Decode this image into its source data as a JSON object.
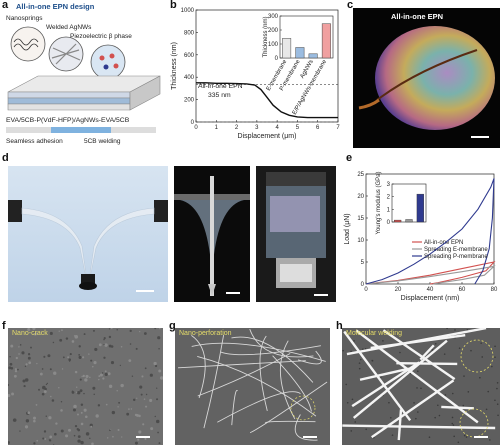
{
  "panels": {
    "a": {
      "label": "a",
      "title": "All-in-one EPN design",
      "callouts": [
        "Nanosprings",
        "Welded AgNWs",
        "Piezoelectric β phase"
      ],
      "layers_text": "EVA/5CB-P(VdF-HFP)/AgNWs-EVA/5CB",
      "legend": [
        "Seamless adhesion",
        "5CB welding"
      ]
    },
    "b": {
      "label": "b",
      "annotation_line1": "All-in-one EPN",
      "annotation_line2": "335 nm"
    },
    "c": {
      "label": "c",
      "caption": "All-in-one EPN"
    },
    "d": {
      "label": "d"
    },
    "e": {
      "label": "e"
    },
    "f": {
      "label": "f",
      "caption": "Nano-crack"
    },
    "g": {
      "label": "g",
      "caption": "Nano-perforation"
    },
    "h": {
      "label": "h",
      "caption": "Molecular welding"
    }
  },
  "colors": {
    "red": "#d2514f",
    "blue": "#2f3a8f",
    "gray": "#9a9a9a",
    "lightblue": "#8fb6e0",
    "pink": "#f0a0a0"
  },
  "chart_data": [
    {
      "type": "line",
      "panel": "b",
      "xlabel": "Displacement (μm)",
      "ylabel": "Thickness (nm)",
      "xlim": [
        0,
        7
      ],
      "ylim": [
        0,
        1000
      ],
      "x_ticks": [
        0,
        1,
        2,
        3,
        4,
        5,
        6,
        7
      ],
      "y_ticks": [
        0,
        200,
        400,
        600,
        800,
        1000
      ],
      "series": [
        {
          "x": [
            0,
            0.5,
            1,
            1.5,
            2,
            2.5,
            2.9,
            3.2,
            3.5,
            3.8,
            4.2,
            4.6,
            5,
            5.5,
            6,
            6.5,
            7
          ],
          "y": [
            350,
            350,
            345,
            345,
            343,
            340,
            330,
            290,
            220,
            150,
            90,
            60,
            45,
            40,
            40,
            40,
            40
          ]
        }
      ],
      "reference_lines": [
        335,
        0
      ]
    },
    {
      "type": "bar",
      "panel": "b-inset",
      "ylabel": "Thickness (nm)",
      "ylim": [
        0,
        300
      ],
      "y_ticks": [
        0,
        100,
        200,
        300
      ],
      "categories": [
        "E-membrane",
        "P-membrane",
        "AgNWs",
        "E/P/AgNWs-membrane"
      ],
      "values": [
        140,
        75,
        30,
        245
      ]
    },
    {
      "type": "line",
      "panel": "e",
      "xlabel": "Displacement (nm)",
      "ylabel": "Load (μN)",
      "xlim": [
        0,
        80
      ],
      "ylim": [
        0,
        25
      ],
      "x_ticks": [
        0,
        20,
        40,
        60,
        80
      ],
      "y_ticks": [
        0,
        5,
        10,
        15,
        20,
        25
      ],
      "series": [
        {
          "name": "All-in-one EPN",
          "loading": [
            [
              0,
              0
            ],
            [
              20,
              0.8
            ],
            [
              40,
              2
            ],
            [
              60,
              3.5
            ],
            [
              80,
              5
            ]
          ],
          "unloading": [
            [
              80,
              5
            ],
            [
              75,
              3
            ],
            [
              60,
              1.5
            ],
            [
              45,
              0.3
            ],
            [
              40,
              0
            ]
          ]
        },
        {
          "name": "Spreading E-membrane",
          "loading": [
            [
              0,
              0
            ],
            [
              20,
              0.7
            ],
            [
              40,
              1.7
            ],
            [
              60,
              2.8
            ],
            [
              80,
              4
            ]
          ],
          "unloading": [
            [
              80,
              4
            ],
            [
              74,
              2
            ],
            [
              60,
              1
            ],
            [
              45,
              0.2
            ],
            [
              42,
              0
            ]
          ]
        },
        {
          "name": "Spreading P-membrane",
          "loading": [
            [
              0,
              0
            ],
            [
              10,
              1
            ],
            [
              20,
              2.5
            ],
            [
              30,
              4.5
            ],
            [
              40,
              6.8
            ],
            [
              50,
              9.5
            ],
            [
              60,
              12.5
            ],
            [
              70,
              17
            ],
            [
              78,
              22
            ],
            [
              80,
              24
            ]
          ],
          "unloading": [
            [
              80,
              24
            ],
            [
              79,
              15
            ],
            [
              77,
              8
            ],
            [
              73,
              3
            ],
            [
              68,
              0
            ]
          ]
        }
      ]
    },
    {
      "type": "bar",
      "panel": "e-inset",
      "ylabel": "Young's modulus (GPa)",
      "ylim": [
        0,
        3
      ],
      "y_ticks": [
        0,
        1,
        2,
        3
      ],
      "values": [
        0.15,
        0.2,
        2.2
      ]
    }
  ]
}
